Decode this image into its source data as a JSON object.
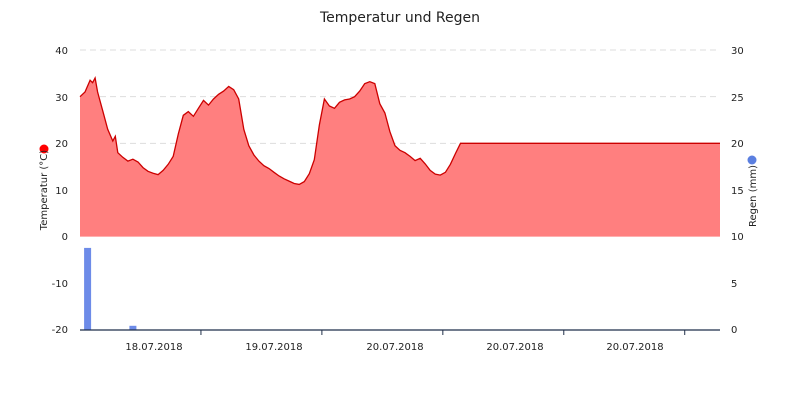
{
  "chart_data": {
    "type": "area",
    "title": "Temperatur und Regen",
    "ylabel_left": "Temperatur (°C)",
    "ylabel_right": "Regen (mm)",
    "left_axis": {
      "min": -20,
      "max": 40,
      "ticks": [
        "40",
        "30",
        "20",
        "10",
        "0",
        "-10",
        "-20"
      ]
    },
    "right_axis": {
      "min": 0,
      "max": 30,
      "ticks": [
        "30",
        "25",
        "20",
        "15",
        "10",
        "5",
        "0"
      ]
    },
    "x_axis": {
      "domain_hours": [
        0,
        127
      ],
      "tick_hours": [
        24,
        48,
        72,
        96,
        120
      ],
      "labels": [
        "18.07.2018",
        "19.07.2018",
        "20.07.2018",
        "20.07.2018",
        "20.07.2018"
      ]
    },
    "colors": {
      "temperature_fill": "#ff7f7f",
      "temperature_line": "#cc0000",
      "rain": "#6d8be8",
      "legend_temp": "#ff0000",
      "legend_rain": "#5b7fe0"
    },
    "series": [
      {
        "type": "area",
        "axis": "left",
        "points": [
          [
            0,
            30
          ],
          [
            1,
            31
          ],
          [
            2,
            33.5
          ],
          [
            2.5,
            33
          ],
          [
            3,
            34
          ],
          [
            3.5,
            31
          ],
          [
            4.5,
            27
          ],
          [
            5.5,
            23
          ],
          [
            6.5,
            20.5
          ],
          [
            7,
            21.5
          ],
          [
            7.5,
            18
          ],
          [
            8.5,
            17
          ],
          [
            9.5,
            16.2
          ],
          [
            10.5,
            16.6
          ],
          [
            11.5,
            16
          ],
          [
            12.5,
            14.8
          ],
          [
            13.5,
            14
          ],
          [
            14.5,
            13.6
          ],
          [
            15.5,
            13.3
          ],
          [
            16.5,
            14.2
          ],
          [
            17.5,
            15.5
          ],
          [
            18.5,
            17.2
          ],
          [
            19.5,
            22
          ],
          [
            20.5,
            26
          ],
          [
            21.5,
            26.8
          ],
          [
            22.5,
            25.8
          ],
          [
            23.5,
            27.5
          ],
          [
            24.5,
            29.2
          ],
          [
            25.5,
            28.2
          ],
          [
            26.5,
            29.5
          ],
          [
            27.5,
            30.5
          ],
          [
            28.5,
            31.2
          ],
          [
            29.5,
            32.2
          ],
          [
            30.5,
            31.5
          ],
          [
            31.5,
            29.5
          ],
          [
            32.5,
            23
          ],
          [
            33.5,
            19.5
          ],
          [
            34.5,
            17.5
          ],
          [
            35.5,
            16.2
          ],
          [
            36.5,
            15.2
          ],
          [
            37.5,
            14.6
          ],
          [
            38.5,
            13.8
          ],
          [
            39.5,
            13
          ],
          [
            40.5,
            12.4
          ],
          [
            41.5,
            11.9
          ],
          [
            42.5,
            11.4
          ],
          [
            43.5,
            11.2
          ],
          [
            44.5,
            11.8
          ],
          [
            45.5,
            13.5
          ],
          [
            46.5,
            16.5
          ],
          [
            47.5,
            24
          ],
          [
            48.5,
            29.5
          ],
          [
            49.5,
            28
          ],
          [
            50.5,
            27.5
          ],
          [
            51.5,
            28.8
          ],
          [
            52.5,
            29.3
          ],
          [
            53.5,
            29.5
          ],
          [
            54.5,
            30
          ],
          [
            55.5,
            31.2
          ],
          [
            56.5,
            32.8
          ],
          [
            57.5,
            33.2
          ],
          [
            58.5,
            32.8
          ],
          [
            59.5,
            28.5
          ],
          [
            60.5,
            26.5
          ],
          [
            61.5,
            22.5
          ],
          [
            62.5,
            19.5
          ],
          [
            63.5,
            18.5
          ],
          [
            64.5,
            18
          ],
          [
            65.5,
            17.2
          ],
          [
            66.5,
            16.3
          ],
          [
            67.5,
            16.8
          ],
          [
            68.5,
            15.6
          ],
          [
            69.5,
            14.2
          ],
          [
            70.5,
            13.4
          ],
          [
            71.5,
            13.2
          ],
          [
            72.5,
            13.8
          ],
          [
            73.5,
            15.5
          ],
          [
            74.5,
            17.8
          ],
          [
            75.5,
            20
          ],
          [
            76,
            20
          ],
          [
            127,
            20
          ]
        ]
      },
      {
        "type": "bar",
        "axis": "right",
        "points": [
          [
            1.5,
            8.8
          ],
          [
            10.5,
            0.45
          ]
        ]
      }
    ],
    "grid": "dashed-horizontal",
    "legend": "axis-markers"
  }
}
